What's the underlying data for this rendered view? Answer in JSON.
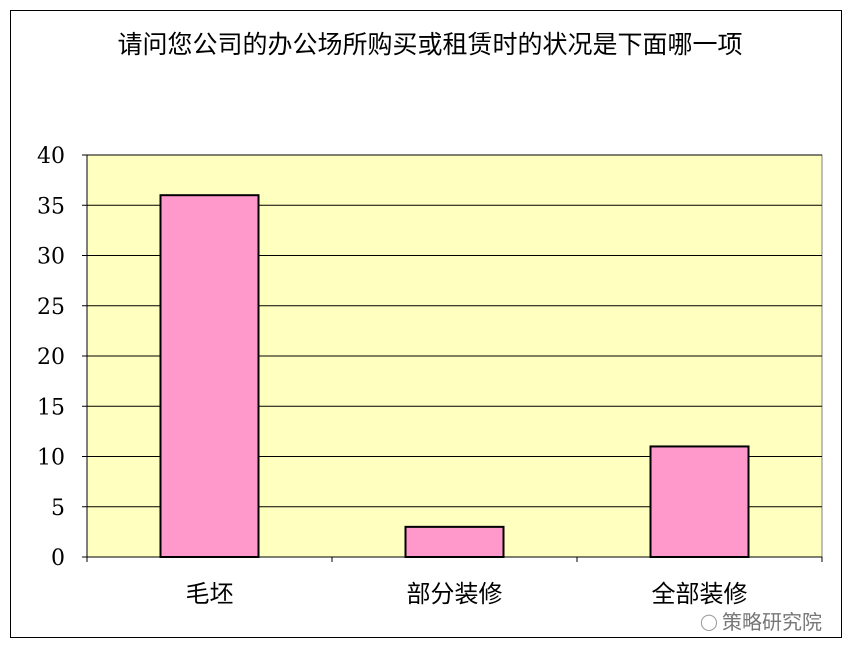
{
  "chart_data": {
    "type": "bar",
    "title": "请问您公司的办公场所购买或租赁时的状况是下面哪一项",
    "categories": [
      "毛坯",
      "部分装修",
      "全部装修"
    ],
    "values": [
      36,
      3,
      11
    ],
    "xlabel": "",
    "ylabel": "",
    "ylim": [
      0,
      40
    ],
    "yticks": [
      0,
      5,
      10,
      15,
      20,
      25,
      30,
      35,
      40
    ],
    "grid": true,
    "legend": "none",
    "colors": {
      "bar": "#ff99cc",
      "plot_background": "#ffffc0",
      "grid": "#000000"
    }
  },
  "watermark": {
    "text": "策略研究院",
    "icon": "wechat-icon"
  }
}
